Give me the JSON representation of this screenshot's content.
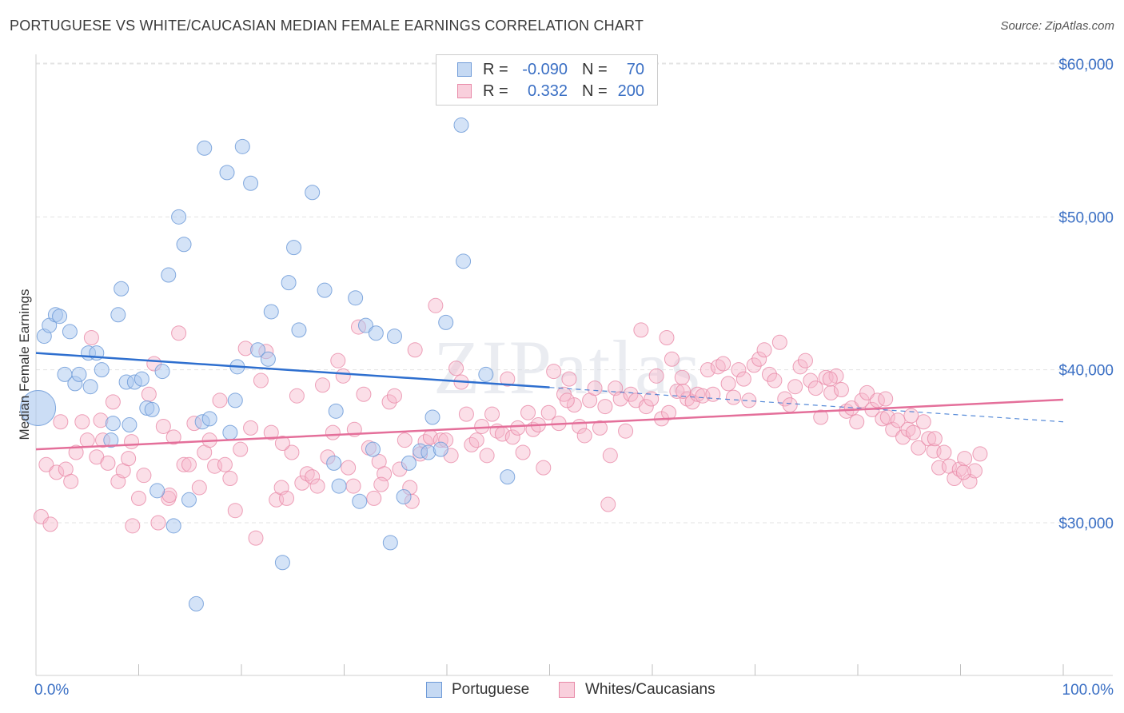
{
  "header": {
    "title": "PORTUGUESE VS WHITE/CAUCASIAN MEDIAN FEMALE EARNINGS CORRELATION CHART",
    "source": "Source: ZipAtlas.com"
  },
  "watermark": "ZIPatlas",
  "legend": {
    "rows": [
      {
        "r_label": "R =",
        "r_value": "-0.090",
        "n_label": "N =",
        "n_value": "70",
        "color": "#a9c7ef"
      },
      {
        "r_label": "R =",
        "r_value": "0.332",
        "n_label": "N =",
        "n_value": "200",
        "color": "#f6b8cb"
      }
    ]
  },
  "bottom_legend": {
    "items": [
      {
        "label": "Portuguese",
        "color": "#a9c7ef"
      },
      {
        "label": "Whites/Caucasians",
        "color": "#f6b8cb"
      }
    ]
  },
  "colors": {
    "blue_fill": "#a9c7ef",
    "blue_stroke": "#6f9bd8",
    "blue_line": "#2e6fcf",
    "pink_fill": "#f6b8cb",
    "pink_stroke": "#e88aa8",
    "pink_line": "#e46f9a",
    "axis_text": "#3a6fc4",
    "grid": "#e3e3e3"
  },
  "chart_data": {
    "type": "scatter",
    "title": "PORTUGUESE VS WHITE/CAUCASIAN MEDIAN FEMALE EARNINGS CORRELATION CHART",
    "xlabel": "",
    "ylabel": "Median Female Earnings",
    "x_tick_labels": [
      "0.0%",
      "100.0%"
    ],
    "y_ticks": [
      30000,
      40000,
      50000,
      60000
    ],
    "y_tick_labels": [
      "$30,000",
      "$40,000",
      "$50,000",
      "$60,000"
    ],
    "xlim": [
      0,
      100
    ],
    "ylim": [
      21000,
      62000
    ],
    "grid": true,
    "legend_position": "top-center",
    "series": [
      {
        "name": "Portuguese",
        "r": -0.09,
        "n": 70,
        "trend": {
          "x0": 0,
          "y0": 41100,
          "x1": 50,
          "y1": 38850,
          "dashed_to": 100,
          "y_dashed_end": 36600
        },
        "points": [
          [
            0.2,
            37500
          ],
          [
            0.8,
            42200
          ],
          [
            1.3,
            42900
          ],
          [
            1.9,
            43600
          ],
          [
            2.3,
            43500
          ],
          [
            2.8,
            39700
          ],
          [
            3.3,
            42500
          ],
          [
            3.8,
            39100
          ],
          [
            4.2,
            39700
          ],
          [
            5.1,
            41100
          ],
          [
            5.3,
            38900
          ],
          [
            5.9,
            41100
          ],
          [
            6.4,
            40000
          ],
          [
            7.3,
            35400
          ],
          [
            7.5,
            36500
          ],
          [
            8.0,
            43600
          ],
          [
            8.3,
            45300
          ],
          [
            8.8,
            39200
          ],
          [
            9.1,
            36400
          ],
          [
            9.6,
            39200
          ],
          [
            10.3,
            39400
          ],
          [
            10.8,
            37500
          ],
          [
            11.3,
            37400
          ],
          [
            11.8,
            32100
          ],
          [
            12.3,
            39900
          ],
          [
            12.9,
            46200
          ],
          [
            13.4,
            29800
          ],
          [
            13.9,
            50000
          ],
          [
            14.4,
            48200
          ],
          [
            14.9,
            31500
          ],
          [
            15.6,
            24700
          ],
          [
            16.2,
            36600
          ],
          [
            16.4,
            54500
          ],
          [
            16.9,
            36800
          ],
          [
            18.6,
            52900
          ],
          [
            18.9,
            35900
          ],
          [
            19.4,
            38000
          ],
          [
            19.6,
            40200
          ],
          [
            20.1,
            54600
          ],
          [
            20.9,
            52200
          ],
          [
            21.6,
            41300
          ],
          [
            22.6,
            40700
          ],
          [
            22.9,
            43800
          ],
          [
            24.0,
            27400
          ],
          [
            24.6,
            45700
          ],
          [
            25.1,
            48000
          ],
          [
            25.6,
            42600
          ],
          [
            26.9,
            51600
          ],
          [
            28.1,
            45200
          ],
          [
            29.0,
            33900
          ],
          [
            29.2,
            37300
          ],
          [
            29.5,
            32400
          ],
          [
            31.1,
            44700
          ],
          [
            31.5,
            31400
          ],
          [
            32.1,
            42900
          ],
          [
            32.8,
            34800
          ],
          [
            33.1,
            42400
          ],
          [
            34.5,
            28700
          ],
          [
            34.9,
            42200
          ],
          [
            35.8,
            31700
          ],
          [
            36.3,
            33900
          ],
          [
            37.4,
            34700
          ],
          [
            38.2,
            34600
          ],
          [
            38.6,
            36900
          ],
          [
            39.4,
            34800
          ],
          [
            39.9,
            43100
          ],
          [
            41.4,
            56000
          ],
          [
            41.6,
            47100
          ],
          [
            43.8,
            39700
          ],
          [
            45.9,
            33000
          ]
        ]
      },
      {
        "name": "Whites/Caucasians",
        "r": 0.332,
        "n": 200,
        "trend": {
          "x0": 0,
          "y0": 34800,
          "x1": 100,
          "y1": 38050
        },
        "points": [
          [
            0.5,
            30400
          ],
          [
            1.0,
            33800
          ],
          [
            1.4,
            29900
          ],
          [
            2.0,
            33300
          ],
          [
            2.4,
            36600
          ],
          [
            2.9,
            33500
          ],
          [
            3.4,
            32700
          ],
          [
            3.9,
            34600
          ],
          [
            4.5,
            36600
          ],
          [
            5.0,
            35400
          ],
          [
            5.4,
            42100
          ],
          [
            5.9,
            34300
          ],
          [
            6.5,
            35400
          ],
          [
            7.0,
            33900
          ],
          [
            7.5,
            37900
          ],
          [
            8.0,
            32700
          ],
          [
            8.5,
            33400
          ],
          [
            9.0,
            34200
          ],
          [
            9.4,
            29800
          ],
          [
            10.0,
            31600
          ],
          [
            10.5,
            33100
          ],
          [
            11.0,
            38400
          ],
          [
            11.5,
            40400
          ],
          [
            11.9,
            30000
          ],
          [
            12.4,
            36300
          ],
          [
            12.9,
            31600
          ],
          [
            13.4,
            35600
          ],
          [
            13.9,
            42400
          ],
          [
            14.4,
            33800
          ],
          [
            14.9,
            33800
          ],
          [
            15.4,
            36500
          ],
          [
            15.9,
            32300
          ],
          [
            16.4,
            34600
          ],
          [
            16.9,
            35400
          ],
          [
            17.4,
            33700
          ],
          [
            17.9,
            38000
          ],
          [
            18.4,
            33800
          ],
          [
            18.9,
            32900
          ],
          [
            19.4,
            30800
          ],
          [
            19.9,
            34800
          ],
          [
            20.4,
            41400
          ],
          [
            20.9,
            36200
          ],
          [
            21.4,
            29000
          ],
          [
            21.9,
            39300
          ],
          [
            22.4,
            41200
          ],
          [
            22.9,
            35900
          ],
          [
            23.4,
            31500
          ],
          [
            23.9,
            32300
          ],
          [
            24.4,
            31600
          ],
          [
            24.9,
            34600
          ],
          [
            25.4,
            38300
          ],
          [
            25.9,
            32600
          ],
          [
            26.4,
            33200
          ],
          [
            26.9,
            33000
          ],
          [
            27.4,
            32400
          ],
          [
            27.9,
            39000
          ],
          [
            28.4,
            34300
          ],
          [
            28.9,
            35900
          ],
          [
            29.4,
            40600
          ],
          [
            29.9,
            39600
          ],
          [
            30.4,
            33600
          ],
          [
            30.9,
            32400
          ],
          [
            31.4,
            42800
          ],
          [
            31.9,
            38400
          ],
          [
            32.4,
            34900
          ],
          [
            32.9,
            31600
          ],
          [
            33.4,
            34000
          ],
          [
            33.9,
            33200
          ],
          [
            34.4,
            37900
          ],
          [
            34.9,
            38300
          ],
          [
            35.4,
            33500
          ],
          [
            35.9,
            35400
          ],
          [
            36.4,
            32300
          ],
          [
            36.9,
            41300
          ],
          [
            37.4,
            34500
          ],
          [
            37.9,
            35300
          ],
          [
            38.4,
            35600
          ],
          [
            38.9,
            44200
          ],
          [
            39.4,
            35400
          ],
          [
            39.9,
            35400
          ],
          [
            40.4,
            34400
          ],
          [
            40.9,
            40100
          ],
          [
            41.4,
            39200
          ],
          [
            41.9,
            37100
          ],
          [
            42.4,
            35100
          ],
          [
            42.9,
            35400
          ],
          [
            43.4,
            36300
          ],
          [
            43.9,
            34400
          ],
          [
            44.4,
            37100
          ],
          [
            44.9,
            36000
          ],
          [
            45.4,
            35800
          ],
          [
            45.9,
            39400
          ],
          [
            46.4,
            35600
          ],
          [
            46.9,
            36200
          ],
          [
            47.4,
            34600
          ],
          [
            47.9,
            37200
          ],
          [
            48.4,
            36100
          ],
          [
            48.9,
            36400
          ],
          [
            49.4,
            33600
          ],
          [
            49.9,
            37200
          ],
          [
            50.4,
            39900
          ],
          [
            50.9,
            36500
          ],
          [
            51.4,
            38400
          ],
          [
            51.9,
            39400
          ],
          [
            52.4,
            37700
          ],
          [
            52.9,
            36300
          ],
          [
            53.4,
            35700
          ],
          [
            53.9,
            38000
          ],
          [
            54.4,
            38800
          ],
          [
            54.9,
            36200
          ],
          [
            55.4,
            37600
          ],
          [
            55.9,
            34400
          ],
          [
            56.4,
            38800
          ],
          [
            56.9,
            38100
          ],
          [
            57.4,
            36000
          ],
          [
            57.9,
            38400
          ],
          [
            58.4,
            38000
          ],
          [
            58.9,
            42600
          ],
          [
            59.4,
            37600
          ],
          [
            59.9,
            38100
          ],
          [
            60.4,
            39600
          ],
          [
            60.9,
            36800
          ],
          [
            61.4,
            42100
          ],
          [
            61.9,
            40700
          ],
          [
            62.4,
            38600
          ],
          [
            62.9,
            39500
          ],
          [
            63.4,
            38100
          ],
          [
            63.9,
            37900
          ],
          [
            64.4,
            38400
          ],
          [
            64.9,
            38300
          ],
          [
            65.4,
            40000
          ],
          [
            65.9,
            38400
          ],
          [
            66.4,
            40200
          ],
          [
            66.9,
            40400
          ],
          [
            67.4,
            39100
          ],
          [
            67.9,
            38200
          ],
          [
            68.4,
            40000
          ],
          [
            68.9,
            39400
          ],
          [
            69.4,
            38000
          ],
          [
            69.9,
            40300
          ],
          [
            70.4,
            40700
          ],
          [
            70.9,
            41300
          ],
          [
            71.4,
            39700
          ],
          [
            71.9,
            39300
          ],
          [
            72.4,
            41800
          ],
          [
            72.9,
            38100
          ],
          [
            73.4,
            37700
          ],
          [
            73.9,
            38900
          ],
          [
            74.4,
            40200
          ],
          [
            74.9,
            40600
          ],
          [
            75.4,
            39300
          ],
          [
            75.9,
            38800
          ],
          [
            76.4,
            36900
          ],
          [
            76.9,
            39500
          ],
          [
            77.4,
            38500
          ],
          [
            77.9,
            39600
          ],
          [
            78.4,
            38700
          ],
          [
            78.9,
            37300
          ],
          [
            79.4,
            37500
          ],
          [
            79.9,
            36600
          ],
          [
            80.4,
            38000
          ],
          [
            80.9,
            38500
          ],
          [
            81.4,
            37400
          ],
          [
            81.9,
            38000
          ],
          [
            82.4,
            36800
          ],
          [
            82.9,
            36900
          ],
          [
            83.4,
            36100
          ],
          [
            83.9,
            36700
          ],
          [
            84.4,
            35600
          ],
          [
            84.9,
            36100
          ],
          [
            85.4,
            35900
          ],
          [
            85.9,
            34900
          ],
          [
            86.4,
            36600
          ],
          [
            86.9,
            35500
          ],
          [
            87.4,
            34700
          ],
          [
            87.9,
            33600
          ],
          [
            88.4,
            34600
          ],
          [
            88.9,
            33700
          ],
          [
            89.4,
            32900
          ],
          [
            89.9,
            33500
          ],
          [
            90.4,
            34200
          ],
          [
            90.9,
            32700
          ],
          [
            91.4,
            33400
          ],
          [
            91.9,
            34500
          ],
          [
            36.6,
            31400
          ],
          [
            6.3,
            36700
          ],
          [
            9.3,
            35300
          ],
          [
            13.0,
            31800
          ],
          [
            24.0,
            35200
          ],
          [
            31.0,
            36100
          ],
          [
            33.6,
            32500
          ],
          [
            51.7,
            38000
          ],
          [
            55.7,
            31200
          ],
          [
            61.6,
            37200
          ],
          [
            63.0,
            38600
          ],
          [
            77.3,
            39400
          ],
          [
            82.7,
            38100
          ],
          [
            85.2,
            37000
          ],
          [
            87.5,
            35500
          ],
          [
            90.3,
            33300
          ]
        ]
      }
    ]
  }
}
